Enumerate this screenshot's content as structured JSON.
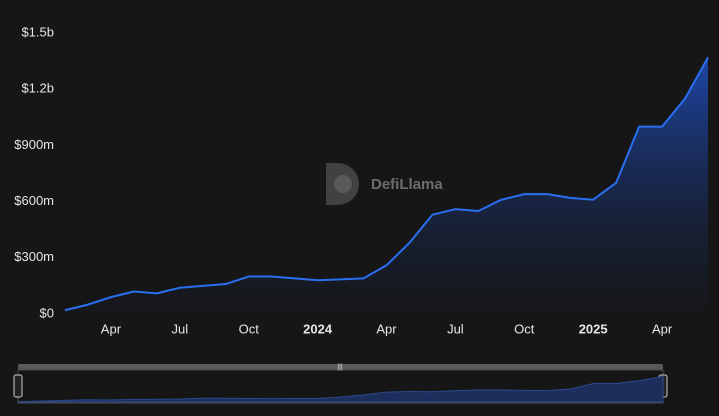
{
  "chart_data": {
    "type": "area",
    "watermark": "DefiLlama",
    "x": [
      "2023-02",
      "2023-03",
      "2023-04",
      "2023-05",
      "2023-06",
      "2023-07",
      "2023-08",
      "2023-09",
      "2023-10",
      "2023-11",
      "2023-12",
      "2024-01",
      "2024-02",
      "2024-03",
      "2024-04",
      "2024-05",
      "2024-06",
      "2024-07",
      "2024-08",
      "2024-09",
      "2024-10",
      "2024-11",
      "2024-12",
      "2025-01",
      "2025-02",
      "2025-03",
      "2025-04",
      "2025-05",
      "2025-06"
    ],
    "values": [
      20,
      50,
      90,
      120,
      110,
      140,
      150,
      160,
      200,
      200,
      190,
      180,
      185,
      190,
      260,
      380,
      530,
      560,
      550,
      610,
      640,
      640,
      620,
      610,
      700,
      1000,
      1000,
      1150,
      1370
    ],
    "color": "#2a6ff0",
    "xlim": [
      "2023-02",
      "2025-06"
    ],
    "xticks": [
      {
        "value": "2023-04",
        "label": "Apr"
      },
      {
        "value": "2023-07",
        "label": "Jul"
      },
      {
        "value": "2023-10",
        "label": "Oct"
      },
      {
        "value": "2024-01",
        "label": "2024"
      },
      {
        "value": "2024-04",
        "label": "Apr"
      },
      {
        "value": "2024-07",
        "label": "Jul"
      },
      {
        "value": "2024-10",
        "label": "Oct"
      },
      {
        "value": "2025-01",
        "label": "2025"
      },
      {
        "value": "2025-04",
        "label": "Apr"
      }
    ],
    "ylim": [
      0,
      1500
    ],
    "yticks": [
      {
        "value": 0,
        "label": "$0"
      },
      {
        "value": 300,
        "label": "$300m"
      },
      {
        "value": 600,
        "label": "$600m"
      },
      {
        "value": 900,
        "label": "$900m"
      },
      {
        "value": 1200,
        "label": "$1.2b"
      },
      {
        "value": 1500,
        "label": "$1.5b"
      }
    ],
    "grid": false
  }
}
